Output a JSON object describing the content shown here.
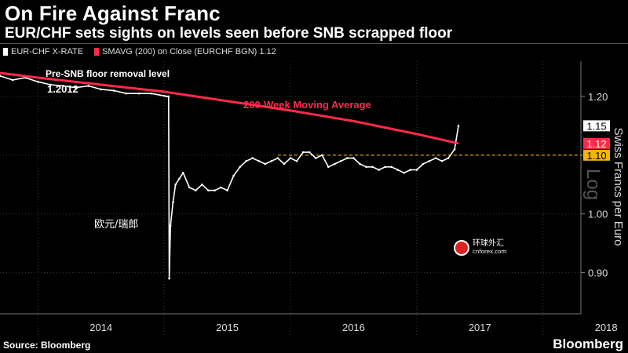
{
  "header": {
    "title": "On Fire Against Franc",
    "subtitle": "EUR/CHF sets sights on levels seen before SNB scrapped floor"
  },
  "legend": [
    {
      "label": "EUR-CHF X-RATE",
      "color": "#ffffff"
    },
    {
      "label": "SMAVG (200) on Close (EURCHF BGN) 1.12",
      "color": "#ff2a4a"
    }
  ],
  "footer": {
    "source": "Source: Bloomberg",
    "brand": "Bloomberg"
  },
  "overlay_text": {
    "chinese_label": "欧元/瑞郎",
    "watermark_cn": "环球外汇",
    "watermark_en": "cnforex.com"
  },
  "chart_data": {
    "type": "line",
    "ylabel": "Swiss Francs per Euro",
    "scale_label": "Log",
    "ylim": [
      0.83,
      1.26
    ],
    "xlim": [
      2013.7,
      2018.3
    ],
    "x_ticks": [
      "2014",
      "2015",
      "2016",
      "2017",
      "2018"
    ],
    "y_ticks": [
      "0.90",
      "1.00",
      "1.10",
      "1.20"
    ],
    "grid": true,
    "series": [
      {
        "name": "EUR-CHF X-RATE",
        "color": "#ffffff",
        "x": [
          2013.7,
          2013.8,
          2013.9,
          2014.0,
          2014.1,
          2014.2,
          2014.3,
          2014.4,
          2014.5,
          2014.6,
          2014.7,
          2014.8,
          2014.9,
          2015.0,
          2015.02,
          2015.035,
          2015.04,
          2015.05,
          2015.07,
          2015.09,
          2015.12,
          2015.15,
          2015.2,
          2015.25,
          2015.3,
          2015.35,
          2015.4,
          2015.45,
          2015.5,
          2015.55,
          2015.6,
          2015.65,
          2015.7,
          2015.75,
          2015.8,
          2015.85,
          2015.9,
          2015.95,
          2016.0,
          2016.05,
          2016.1,
          2016.15,
          2016.2,
          2016.25,
          2016.3,
          2016.35,
          2016.4,
          2016.45,
          2016.5,
          2016.55,
          2016.6,
          2016.65,
          2016.7,
          2016.75,
          2016.8,
          2016.85,
          2016.9,
          2016.95,
          2017.0,
          2017.05,
          2017.1,
          2017.15,
          2017.2,
          2017.25,
          2017.3,
          2017.33
        ],
        "values": [
          1.235,
          1.228,
          1.232,
          1.225,
          1.22,
          1.218,
          1.215,
          1.218,
          1.212,
          1.21,
          1.205,
          1.205,
          1.205,
          1.201,
          1.2,
          1.2,
          0.89,
          0.98,
          1.02,
          1.05,
          1.06,
          1.07,
          1.045,
          1.04,
          1.05,
          1.04,
          1.04,
          1.045,
          1.04,
          1.065,
          1.08,
          1.09,
          1.095,
          1.09,
          1.085,
          1.09,
          1.095,
          1.085,
          1.095,
          1.09,
          1.105,
          1.105,
          1.095,
          1.1,
          1.08,
          1.085,
          1.09,
          1.095,
          1.095,
          1.085,
          1.08,
          1.08,
          1.075,
          1.08,
          1.08,
          1.075,
          1.07,
          1.075,
          1.075,
          1.085,
          1.09,
          1.095,
          1.09,
          1.095,
          1.11,
          1.15
        ]
      },
      {
        "name": "SMAVG (200) on Close (EURCHF BGN)",
        "color": "#ff2a4a",
        "x": [
          2013.7,
          2014.0,
          2014.5,
          2015.0,
          2015.5,
          2016.0,
          2016.5,
          2017.0,
          2017.33
        ],
        "values": [
          1.24,
          1.232,
          1.22,
          1.208,
          1.192,
          1.176,
          1.158,
          1.136,
          1.12
        ]
      }
    ],
    "reference_lines": [
      {
        "value": 1.1,
        "color": "#f2b705",
        "style": "dashed"
      }
    ],
    "value_labels": [
      {
        "text": "1.15",
        "value": 1.15,
        "bg": "#ffffff",
        "fg": "#000000"
      },
      {
        "text": "1.12",
        "value": 1.12,
        "bg": "#ff2a4a",
        "fg": "#ffffff"
      },
      {
        "text": "1.10",
        "value": 1.1,
        "bg": "#f2b705",
        "fg": "#000000"
      }
    ],
    "annotations": [
      {
        "text": "Pre-SNB floor removal level",
        "color": "#ffffff"
      },
      {
        "text": "1.2012",
        "color": "#ffffff"
      },
      {
        "text": "200-Week Moving Average",
        "color": "#ff2a4a"
      }
    ]
  }
}
